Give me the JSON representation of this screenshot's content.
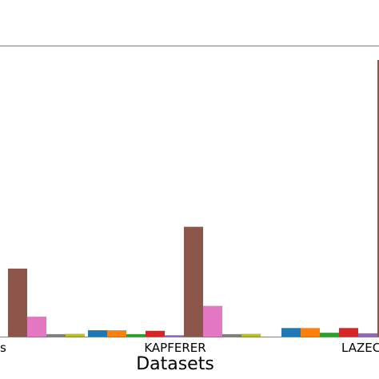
{
  "chart_data": {
    "type": "bar",
    "title": "",
    "xlabel": "Datasets",
    "ylabel": "",
    "categories_visible": [
      "s",
      "KAPFERER",
      "LAZEC"
    ],
    "ylim": [
      0,
      100
    ],
    "grid": false,
    "series": [
      {
        "color": "#1f77b4",
        "values": [
          null,
          2.3,
          3.1
        ]
      },
      {
        "color": "#ff7f0e",
        "values": [
          null,
          2.3,
          3.1
        ]
      },
      {
        "color": "#2ca02c",
        "values": [
          null,
          0.9,
          1.4
        ]
      },
      {
        "color": "#d62728",
        "values": [
          null,
          2.1,
          3.1
        ]
      },
      {
        "color": "#9467bd",
        "values": [
          null,
          0.5,
          1.2
        ]
      },
      {
        "color": "#8c564b",
        "values": [
          24.6,
          39.7,
          100
        ]
      },
      {
        "color": "#e377c2",
        "values": [
          7.2,
          11.1,
          null
        ]
      },
      {
        "color": "#7f7f7f",
        "values": [
          0.9,
          0.9,
          null
        ]
      },
      {
        "color": "#bcbd22",
        "values": [
          1.0,
          1.0,
          null
        ]
      }
    ]
  }
}
